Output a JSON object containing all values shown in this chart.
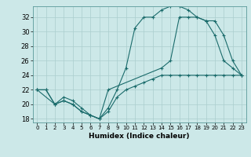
{
  "title": "",
  "xlabel": "Humidex (Indice chaleur)",
  "ylabel": "",
  "bg_color": "#cce8e8",
  "line_color": "#1a6b6b",
  "grid_color": "#aacece",
  "xlim": [
    -0.5,
    23.5
  ],
  "ylim": [
    17.5,
    33.5
  ],
  "xticks": [
    0,
    1,
    2,
    3,
    4,
    5,
    6,
    7,
    8,
    9,
    10,
    11,
    12,
    13,
    14,
    15,
    16,
    17,
    18,
    19,
    20,
    21,
    22,
    23
  ],
  "yticks": [
    18,
    20,
    22,
    24,
    26,
    28,
    30,
    32
  ],
  "line1_x": [
    0,
    1,
    2,
    3,
    4,
    5,
    6,
    7,
    8,
    9,
    10,
    11,
    12,
    13,
    14,
    15,
    16,
    17,
    18,
    19,
    20,
    21,
    22,
    23
  ],
  "line1_y": [
    22,
    22,
    20,
    20.5,
    20,
    19,
    18.5,
    18,
    19,
    21,
    22,
    22.5,
    23,
    23.5,
    24,
    24,
    24,
    24,
    24,
    24,
    24,
    24,
    24,
    24
  ],
  "line2_x": [
    0,
    1,
    2,
    3,
    4,
    5,
    6,
    7,
    8,
    9,
    10,
    11,
    12,
    13,
    14,
    15,
    16,
    17,
    18,
    19,
    20,
    21,
    22,
    23
  ],
  "line2_y": [
    22,
    22,
    20,
    20.5,
    20,
    19,
    18.5,
    18,
    19.5,
    22,
    25,
    30.5,
    32,
    32,
    33,
    33.5,
    33.5,
    33,
    32,
    31.5,
    29.5,
    26,
    25,
    24
  ],
  "line3_x": [
    0,
    2,
    3,
    4,
    5,
    6,
    7,
    8,
    14,
    15,
    16,
    17,
    18,
    19,
    20,
    21,
    22,
    23
  ],
  "line3_y": [
    22,
    20,
    21,
    20.5,
    19.5,
    18.5,
    18,
    22,
    25,
    26,
    32,
    32,
    32,
    31.5,
    31.5,
    29.5,
    26,
    24
  ]
}
